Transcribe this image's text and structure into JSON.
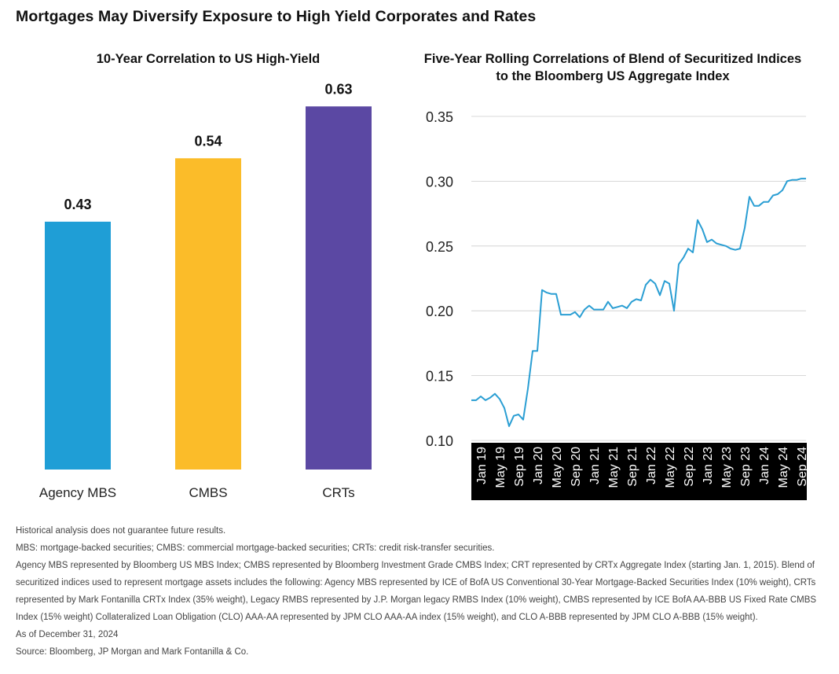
{
  "title": "Mortgages May Diversify Exposure to High Yield Corporates and Rates",
  "colors": {
    "agency": "#1f9ed6",
    "cmbs": "#fbbc29",
    "crts": "#5b48a3",
    "line": "#2a9ed3",
    "axis_band": "#000000",
    "grid": "#cccccc"
  },
  "chart_data": [
    {
      "type": "bar",
      "title": "10-Year Correlation to US High-Yield",
      "categories": [
        "Agency MBS",
        "CMBS",
        "CRTs"
      ],
      "values": [
        0.43,
        0.54,
        0.63
      ],
      "data_labels": [
        "0.43",
        "0.54",
        "0.63"
      ],
      "colors": [
        "#1f9ed6",
        "#fbbc29",
        "#5b48a3"
      ],
      "ylim": [
        0,
        0.7
      ],
      "grid": false
    },
    {
      "type": "line",
      "title": "Five-Year Rolling Correlations of Blend of Securitized Indices to the Bloomberg US Aggregate Index",
      "ylim": [
        0.1,
        0.35
      ],
      "yticks": [
        "0.35",
        "0.30",
        "0.25",
        "0.20",
        "0.15",
        "0.10"
      ],
      "ytick_values": [
        0.35,
        0.3,
        0.25,
        0.2,
        0.15,
        0.1
      ],
      "xtick_labels": [
        "Jan 19",
        "May 19",
        "Sep 19",
        "Jan 20",
        "May 20",
        "Sep 20",
        "Jan 21",
        "May 21",
        "Sep 21",
        "Jan 22",
        "May 22",
        "Sep 22",
        "Jan 23",
        "May 23",
        "Sep 23",
        "Jan 24",
        "May 24",
        "Sep 24"
      ],
      "grid": true,
      "series": [
        {
          "x": [
            "Jan 19",
            "Feb 19",
            "Mar 19",
            "Apr 19",
            "May 19",
            "Jun 19",
            "Jul 19",
            "Aug 19",
            "Sep 19",
            "Oct 19",
            "Nov 19",
            "Dec 19",
            "Jan 20",
            "Feb 20",
            "Mar 20",
            "Apr 20",
            "May 20",
            "Jun 20",
            "Jul 20",
            "Aug 20",
            "Sep 20",
            "Oct 20",
            "Nov 20",
            "Dec 20",
            "Jan 21",
            "Feb 21",
            "Mar 21",
            "Apr 21",
            "May 21",
            "Jun 21",
            "Jul 21",
            "Aug 21",
            "Sep 21",
            "Oct 21",
            "Nov 21",
            "Dec 21",
            "Jan 22",
            "Feb 22",
            "Mar 22",
            "Apr 22",
            "May 22",
            "Jun 22",
            "Jul 22",
            "Aug 22",
            "Sep 22",
            "Oct 22",
            "Nov 22",
            "Dec 22",
            "Jan 23",
            "Feb 23",
            "Mar 23",
            "Apr 23",
            "May 23",
            "Jun 23",
            "Jul 23",
            "Aug 23",
            "Sep 23",
            "Oct 23",
            "Nov 23",
            "Dec 23",
            "Jan 24",
            "Feb 24",
            "Mar 24",
            "Apr 24",
            "May 24",
            "Jun 24",
            "Jul 24",
            "Aug 24",
            "Sep 24",
            "Oct 24",
            "Nov 24",
            "Dec 24"
          ],
          "values": [
            0.131,
            0.131,
            0.134,
            0.131,
            0.133,
            0.136,
            0.132,
            0.125,
            0.111,
            0.119,
            0.12,
            0.116,
            0.14,
            0.169,
            0.169,
            0.216,
            0.214,
            0.213,
            0.213,
            0.197,
            0.197,
            0.197,
            0.199,
            0.195,
            0.201,
            0.204,
            0.201,
            0.201,
            0.201,
            0.207,
            0.202,
            0.203,
            0.204,
            0.202,
            0.207,
            0.209,
            0.208,
            0.22,
            0.224,
            0.221,
            0.212,
            0.223,
            0.221,
            0.2,
            0.236,
            0.241,
            0.248,
            0.245,
            0.27,
            0.263,
            0.253,
            0.255,
            0.252,
            0.251,
            0.25,
            0.248,
            0.247,
            0.248,
            0.264,
            0.288,
            0.281,
            0.281,
            0.284,
            0.284,
            0.289,
            0.29,
            0.293,
            0.3,
            0.301,
            0.301,
            0.302,
            0.302
          ]
        }
      ]
    }
  ],
  "footnotes": [
    "Historical analysis does not guarantee future results.",
    "MBS: mortgage-backed securities; CMBS: commercial mortgage-backed securities; CRTs: credit risk-transfer securities.",
    "Agency MBS represented by Bloomberg US MBS Index; CMBS represented by Bloomberg Investment Grade CMBS Index; CRT represented by CRTx Aggregate Index (starting Jan. 1, 2015). Blend of securitized indices used to represent mortgage assets includes the following: Agency MBS represented by ICE of BofA US Conventional 30-Year Mortgage-Backed Securities Index (10% weight), CRTs represented by Mark Fontanilla CRTx Index (35% weight), Legacy RMBS represented by J.P. Morgan legacy RMBS Index (10% weight), CMBS represented by ICE BofA AA-BBB US Fixed Rate CMBS Index (15% weight) Collateralized Loan Obligation (CLO) AAA-AA represented by JPM CLO AAA-AA index (15% weight), and CLO A-BBB represented by JPM CLO A-BBB (15% weight).",
    "As of December 31, 2024",
    "Source: Bloomberg, JP Morgan and Mark Fontanilla & Co."
  ]
}
